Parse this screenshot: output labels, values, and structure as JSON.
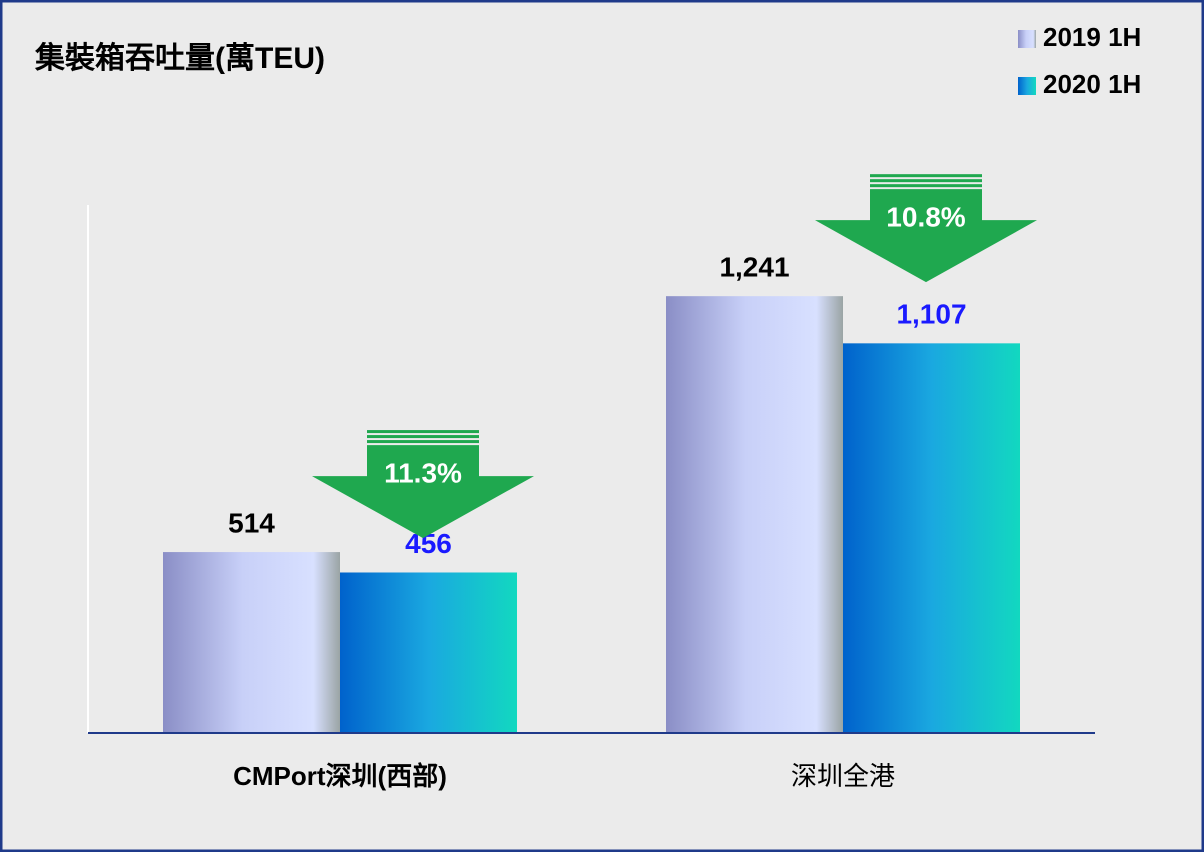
{
  "chart_data": {
    "type": "bar",
    "title": "集裝箱吞吐量(萬TEU)",
    "categories": [
      "CMPort深圳(西部)",
      "深圳全港"
    ],
    "series": [
      {
        "name": "2019 1H",
        "color": "#b4bcec",
        "label_color": "#000000",
        "values": [
          514,
          1241
        ],
        "value_labels": [
          "514",
          "1,241"
        ]
      },
      {
        "name": "2020 1H",
        "color": "#0a8ed8",
        "label_color": "#1a1aff",
        "values": [
          456,
          1107
        ],
        "value_labels": [
          "456",
          "1,107"
        ]
      }
    ],
    "annotations": [
      {
        "text": "11.3%"
      },
      {
        "text": "10.8%"
      }
    ],
    "ylim": [
      0,
      1500
    ],
    "legend": "top-right"
  }
}
